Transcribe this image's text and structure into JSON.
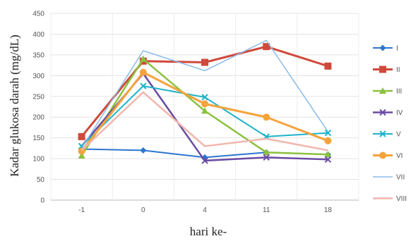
{
  "chart_data": {
    "type": "line",
    "title": "",
    "xlabel": "hari ke-",
    "ylabel": "Kadar glukosa darah (mg/dL)",
    "categories": [
      "-1",
      "0",
      "4",
      "11",
      "18"
    ],
    "ylim": [
      0,
      450
    ],
    "yticks": [
      0,
      50,
      100,
      150,
      200,
      250,
      300,
      350,
      400,
      450
    ],
    "grid": true,
    "legend_position": "right",
    "series": [
      {
        "name": "I",
        "color": "#2e75d0",
        "marker": "diamond",
        "line_width": 2,
        "values": [
          123,
          120,
          103,
          115,
          110
        ]
      },
      {
        "name": "II",
        "color": "#d0493a",
        "marker": "square",
        "line_width": 3,
        "values": [
          153,
          335,
          332,
          370,
          323
        ]
      },
      {
        "name": "III",
        "color": "#8cc13f",
        "marker": "triangle",
        "line_width": 2.5,
        "values": [
          107,
          340,
          215,
          115,
          110
        ]
      },
      {
        "name": "IV",
        "color": "#6a4aa3",
        "marker": "x",
        "line_width": 2.5,
        "values": [
          130,
          305,
          95,
          103,
          98
        ]
      },
      {
        "name": "V",
        "color": "#1fb3c9",
        "marker": "x",
        "line_width": 2,
        "values": [
          130,
          275,
          248,
          153,
          162
        ]
      },
      {
        "name": "VI",
        "color": "#f5a33b",
        "marker": "circle",
        "line_width": 3,
        "values": [
          118,
          308,
          232,
          200,
          143
        ]
      },
      {
        "name": "VII",
        "color": "#8bbbe8",
        "marker": "none",
        "line_width": 1.5,
        "values": [
          125,
          360,
          312,
          385,
          165
        ]
      },
      {
        "name": "VIII",
        "color": "#f0b6ad",
        "marker": "none",
        "line_width": 2.5,
        "values": [
          120,
          260,
          130,
          148,
          120
        ]
      }
    ]
  }
}
